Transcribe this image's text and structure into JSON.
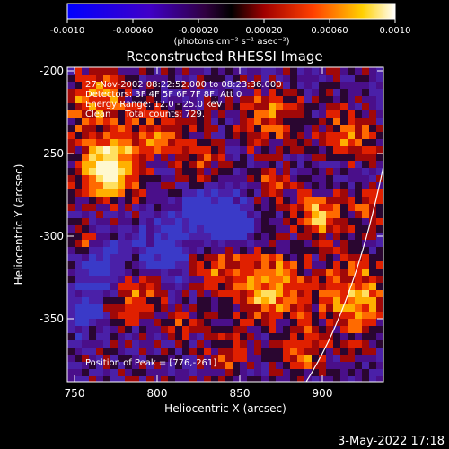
{
  "colorbar": {
    "tick_labels": [
      "-0.0010",
      "-0.00060",
      "-0.00020",
      "0.00020",
      "0.00060",
      "0.0010"
    ],
    "units_label": "(photons cm⁻² s⁻¹ asec⁻²)"
  },
  "image": {
    "title": "Reconstructed RHESSI Image",
    "annotations": [
      "27-Nov-2002 08:22:52.000 to 08:23:36.000",
      "Detectors: 3F 4F 5F 6F 7F 8F, Att 0",
      "Energy Range: 12.0 - 25.0 keV",
      "Clean     Total counts: 729."
    ],
    "peak_label": "Position of Peak = [776,-261]",
    "x_axis": {
      "label": "Heliocentric X (arcsec)",
      "ticks": [
        "750",
        "800",
        "850",
        "900"
      ]
    },
    "y_axis": {
      "label": "Heliocentric Y (arcsec)",
      "ticks": [
        "-200",
        "-250",
        "-300",
        "-350"
      ]
    }
  },
  "footer": {
    "timestamp": "3-May-2022 17:18"
  }
}
